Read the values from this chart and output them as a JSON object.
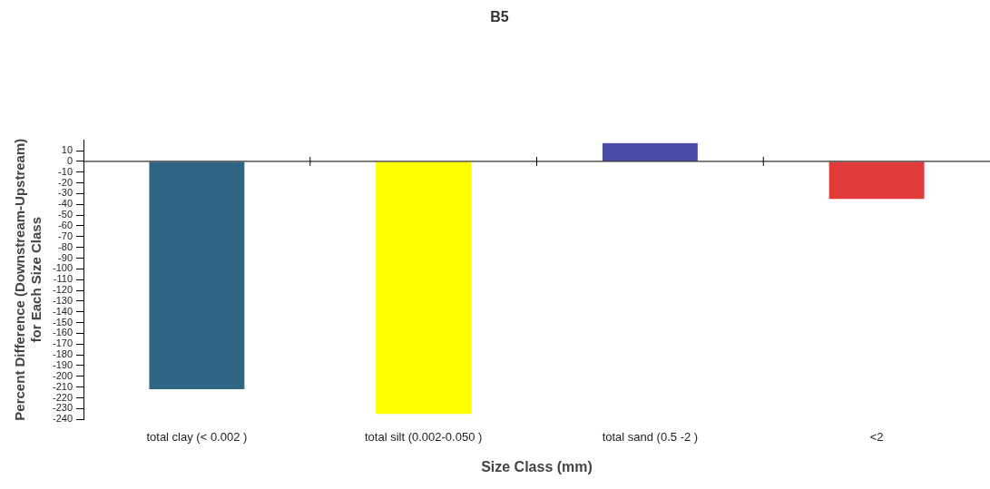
{
  "chart_data": {
    "type": "bar",
    "title": "B5",
    "xlabel": "Size Class (mm)",
    "ylabel": "Percent Difference (Downstream-Upstream) for Each Size Class",
    "categories": [
      "total clay (< 0.002 )",
      "total silt (0.002-0.050 )",
      "total sand (0.5 -2 )",
      "<2"
    ],
    "values": [
      -212,
      -235,
      17,
      -35
    ],
    "colors": [
      "#2f6685",
      "#ffff00",
      "#4a4aa8",
      "#e03a3a"
    ],
    "ylim": [
      -240,
      20
    ],
    "yticks": [
      10,
      0,
      -10,
      -20,
      -30,
      -40,
      -50,
      -60,
      -70,
      -80,
      -90,
      -100,
      -110,
      -120,
      -130,
      -140,
      -150,
      -160,
      -170,
      -180,
      -190,
      -200,
      -210,
      -220,
      -230,
      -240
    ],
    "ref_lines": [
      {
        "axis": "y",
        "value": 0,
        "color": "#000000"
      }
    ],
    "grid": false,
    "legend": false
  }
}
